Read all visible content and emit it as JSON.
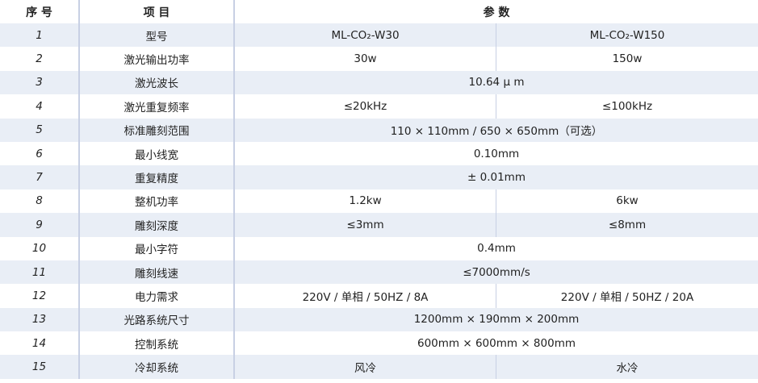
{
  "header": {
    "no": "序 号",
    "item": "项 目",
    "params": "参 数"
  },
  "rows": [
    {
      "no": "1",
      "item": "型号",
      "a": "ML-CO₂-W30",
      "b": "ML-CO₂-W150"
    },
    {
      "no": "2",
      "item": "激光输出功率",
      "a": "30w",
      "b": "150w"
    },
    {
      "no": "3",
      "item": "激光波长",
      "v": "10.64 μ m"
    },
    {
      "no": "4",
      "item": "激光重复频率",
      "a": "≤20kHz",
      "b": "≤100kHz"
    },
    {
      "no": "5",
      "item": "标准雕刻范围",
      "v": "110 × 110mm / 650 × 650mm（可选）"
    },
    {
      "no": "6",
      "item": "最小线宽",
      "v": "0.10mm"
    },
    {
      "no": "7",
      "item": "重复精度",
      "v": "± 0.01mm"
    },
    {
      "no": "8",
      "item": "整机功率",
      "a": "1.2kw",
      "b": "6kw"
    },
    {
      "no": "9",
      "item": "雕刻深度",
      "a": "≤3mm",
      "b": "≤8mm"
    },
    {
      "no": "10",
      "item": "最小字符",
      "v": "0.4mm"
    },
    {
      "no": "11",
      "item": "雕刻线速",
      "v": "≤7000mm/s"
    },
    {
      "no": "12",
      "item": "电力需求",
      "a": "220V / 单相 / 50HZ / 8A",
      "b": "220V / 单相 / 50HZ / 20A"
    },
    {
      "no": "13",
      "item": "光路系统尺寸",
      "v": "1200mm × 190mm × 200mm"
    },
    {
      "no": "14",
      "item": "控制系统",
      "v": "600mm × 600mm × 800mm"
    },
    {
      "no": "15",
      "item": "冷却系统",
      "a": "风冷",
      "b": "水冷"
    }
  ],
  "colors": {
    "stripe": "#e9eef6",
    "divider": "#c8d0e4"
  }
}
